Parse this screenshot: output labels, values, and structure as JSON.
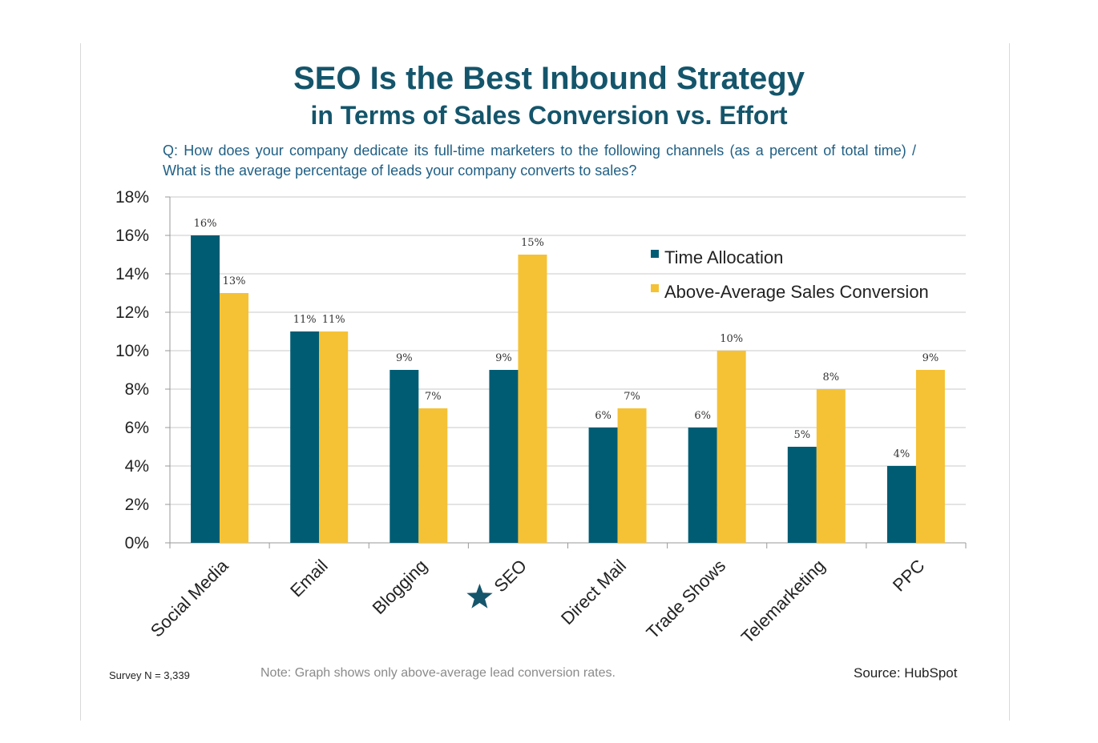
{
  "chart_data": {
    "type": "bar",
    "title": "SEO Is the Best Inbound Strategy",
    "subtitle": "in Terms of Sales Conversion vs. Effort",
    "question": "Q: How does your company dedicate its full-time marketers to the following channels (as a percent of total time) / What is the average percentage of leads your company converts to sales?",
    "categories": [
      "Social Media",
      "Email",
      "Blogging",
      "SEO",
      "Direct Mail",
      "Trade Shows",
      "Telemarketing",
      "PPC"
    ],
    "highlight_category": "SEO",
    "series": [
      {
        "name": "Time Allocation",
        "values": [
          16,
          11,
          9,
          9,
          6,
          6,
          5,
          4
        ],
        "labels": [
          "16%",
          "11%",
          "9%",
          "9%",
          "6%",
          "6%",
          "5%",
          "4%"
        ],
        "color": "#005c73"
      },
      {
        "name": "Above-Average Sales Conversion",
        "values": [
          13,
          11,
          7,
          15,
          7,
          10,
          8,
          9
        ],
        "labels": [
          "13%",
          "11%",
          "7%",
          "15%",
          "7%",
          "10%",
          "8%",
          "9%"
        ],
        "color": "#f5c236"
      }
    ],
    "ylim": [
      0,
      18
    ],
    "yticks": [
      "0%",
      "2%",
      "4%",
      "6%",
      "8%",
      "10%",
      "12%",
      "14%",
      "16%",
      "18%"
    ],
    "grid": true,
    "legend_position": "top-right"
  },
  "footer": {
    "survey": "Survey N = 3,339",
    "note": "Note: Graph shows only above-average lead conversion rates.",
    "source": "Source: HubSpot"
  },
  "colors": {
    "title": "#14556b",
    "question": "#1f5f84",
    "star": "#14556b"
  },
  "icons": {
    "highlight": "star-icon"
  }
}
